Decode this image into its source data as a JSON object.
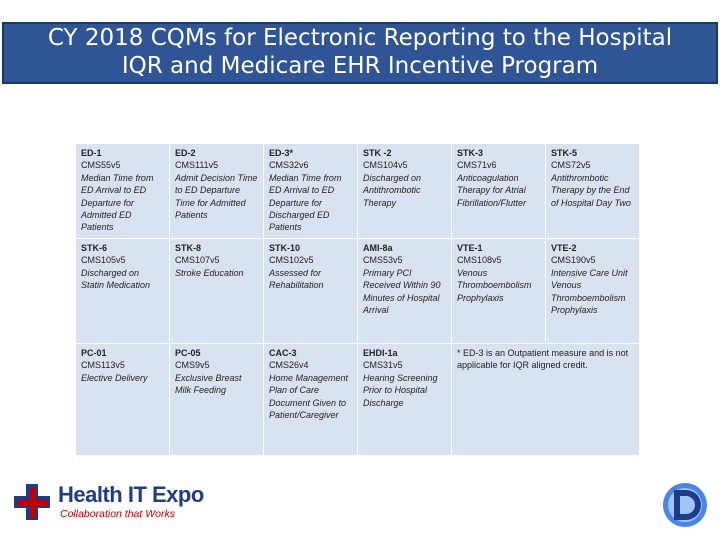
{
  "header": {
    "title_lines": [
      "CY 2018 CQMs for Electronic Reporting to the Hospital",
      "IQR and Medicare EHR Incentive Program"
    ]
  },
  "table": {
    "rows": [
      [
        {
          "code": "ED-1",
          "cms": "CMS55v5",
          "desc": "Median Time from ED Arrival to ED Departure for Admitted ED Patients"
        },
        {
          "code": "ED-2",
          "cms": "CMS111v5",
          "desc": "Admit Decision Time to ED Departure Time for Admitted Patients"
        },
        {
          "code": "ED-3*",
          "cms": "CMS32v6",
          "desc": "Median Time from ED Arrival to ED Departure for Discharged ED Patients"
        },
        {
          "code": "STK -2",
          "cms": "CMS104v5",
          "desc": "Discharged on Antithrombotic Therapy"
        },
        {
          "code": "STK-3",
          "cms": "CMS71v6",
          "desc": "Anticoagulation Therapy for Atrial Fibrillation/Flutter"
        },
        {
          "code": "STK-5",
          "cms": "CMS72v5",
          "desc": "Antithrombotic Therapy by the End of Hospital Day Two"
        }
      ],
      [
        {
          "code": "STK-6",
          "cms": "CMS105v5",
          "desc": "Discharged on Statin Medication"
        },
        {
          "code": "STK-8",
          "cms": "CMS107v5",
          "desc": "Stroke Education"
        },
        {
          "code": "STK-10",
          "cms": "CMS102v5",
          "desc": "Assessed for Rehabilitation"
        },
        {
          "code": "AMI-8a",
          "cms": "CMS53v5",
          "desc": "Primary PCI Received Within 90 Minutes of Hospital Arrival"
        },
        {
          "code": "VTE-1",
          "cms": "CMS108v5",
          "desc": "Venous Thromboembolism Prophylaxis"
        },
        {
          "code": "VTE-2",
          "cms": "CMS190v5",
          "desc": "Intensive Care Unit Venous Thromboembolism Prophylaxis"
        }
      ],
      [
        {
          "code": "PC-01",
          "cms": "CMS113v5",
          "desc": "Elective Delivery"
        },
        {
          "code": "PC-05",
          "cms": "CMS9v5",
          "desc": "Exclusive Breast Milk Feeding"
        },
        {
          "code": "CAC-3",
          "cms": "CMS26v4",
          "desc": "Home Management Plan of Care Document Given to Patient/Caregiver"
        },
        {
          "code": "EHDI-1a",
          "cms": "CMS31v5",
          "desc": "Hearing Screening Prior to Hospital Discharge"
        }
      ]
    ],
    "note": "* ED-3 is an Outpatient measure and is not applicable for IQR aligned credit."
  },
  "footer": {
    "logo_name": "Health IT Expo",
    "logo_tagline": "Collaboration that Works"
  }
}
